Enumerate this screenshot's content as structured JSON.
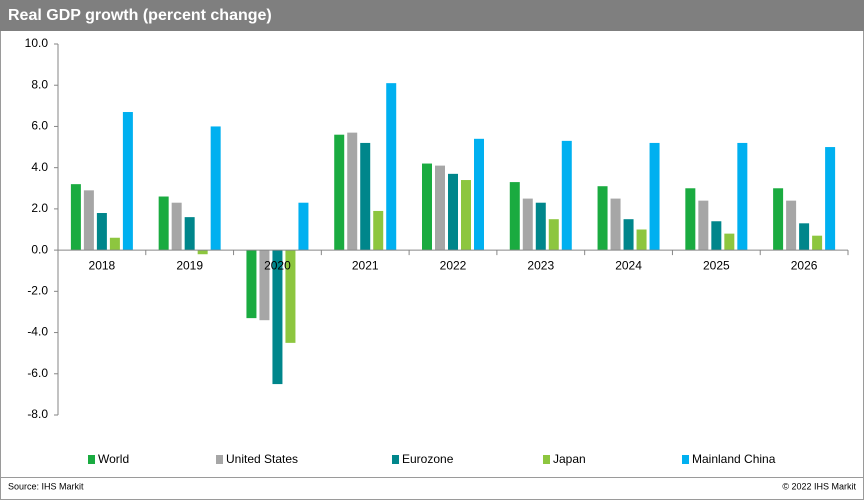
{
  "chart_data": {
    "type": "bar",
    "title": "Real GDP growth (percent change)",
    "categories": [
      "2018",
      "2019",
      "2020",
      "2021",
      "2022",
      "2023",
      "2024",
      "2025",
      "2026"
    ],
    "series": [
      {
        "name": "World",
        "color": "#1aab40",
        "values": [
          3.2,
          2.6,
          -3.3,
          5.6,
          4.2,
          3.3,
          3.1,
          3.0,
          3.0
        ]
      },
      {
        "name": "United States",
        "color": "#a6a6a6",
        "values": [
          2.9,
          2.3,
          -3.4,
          5.7,
          4.1,
          2.5,
          2.5,
          2.4,
          2.4
        ]
      },
      {
        "name": "Eurozone",
        "color": "#00868b",
        "values": [
          1.8,
          1.6,
          -6.5,
          5.2,
          3.7,
          2.3,
          1.5,
          1.4,
          1.3
        ]
      },
      {
        "name": "Japan",
        "color": "#8dc63f",
        "values": [
          0.6,
          -0.2,
          -4.5,
          1.9,
          3.4,
          1.5,
          1.0,
          0.8,
          0.7
        ]
      },
      {
        "name": "Mainland China",
        "color": "#00b0f0",
        "values": [
          6.7,
          6.0,
          2.3,
          8.1,
          5.4,
          5.3,
          5.2,
          5.2,
          5.0
        ]
      }
    ],
    "ylim": [
      -8,
      10
    ],
    "yticks": [
      {
        "value": -8,
        "label": "-8.0"
      },
      {
        "value": -6,
        "label": "-6.0"
      },
      {
        "value": -4,
        "label": "-4.0"
      },
      {
        "value": -2,
        "label": "-2.0"
      },
      {
        "value": 0,
        "label": "0.0"
      },
      {
        "value": 2,
        "label": "2.0"
      },
      {
        "value": 4,
        "label": "4.0"
      },
      {
        "value": 6,
        "label": "6.0"
      },
      {
        "value": 8,
        "label": "8.0"
      },
      {
        "value": 10,
        "label": "10.0"
      }
    ],
    "source": "Source: IHS Markit",
    "copyright": "© 2022 IHS Markit"
  }
}
